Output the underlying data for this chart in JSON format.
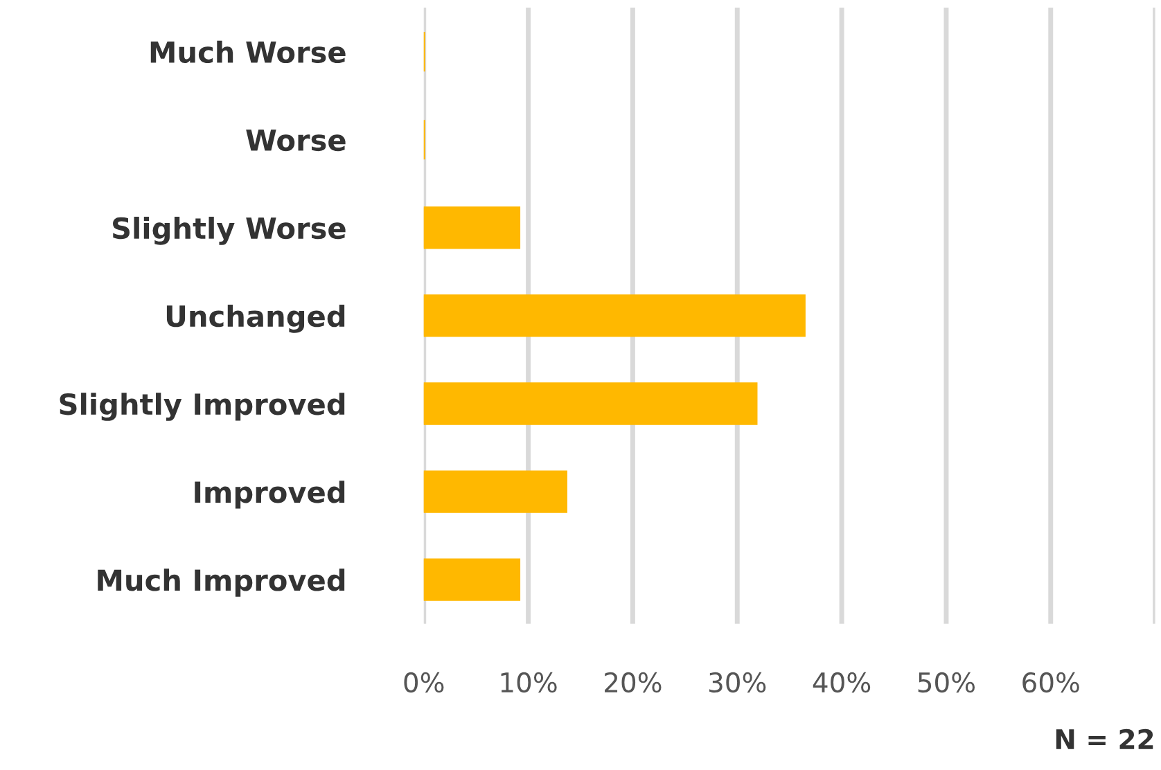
{
  "chart_data": {
    "type": "bar",
    "orientation": "horizontal",
    "categories": [
      "Much Worse",
      "Worse",
      "Slightly Worse",
      "Unchanged",
      "Slightly Improved",
      "Improved",
      "Much Improved"
    ],
    "values": [
      0,
      0,
      9.1,
      36.4,
      31.8,
      13.6,
      9.1
    ],
    "color": "#ffb800",
    "xlim": [
      0,
      70
    ],
    "xticks": [
      {
        "value": 0,
        "label": "0%"
      },
      {
        "value": 10,
        "label": "10%"
      },
      {
        "value": 20,
        "label": "20%"
      },
      {
        "value": 30,
        "label": "30%"
      },
      {
        "value": 40,
        "label": "40%"
      },
      {
        "value": 50,
        "label": "50%"
      },
      {
        "value": 60,
        "label": "60%"
      },
      {
        "value": 70,
        "label": null
      }
    ],
    "grid": "x",
    "annotations": [
      "N = 22"
    ]
  }
}
